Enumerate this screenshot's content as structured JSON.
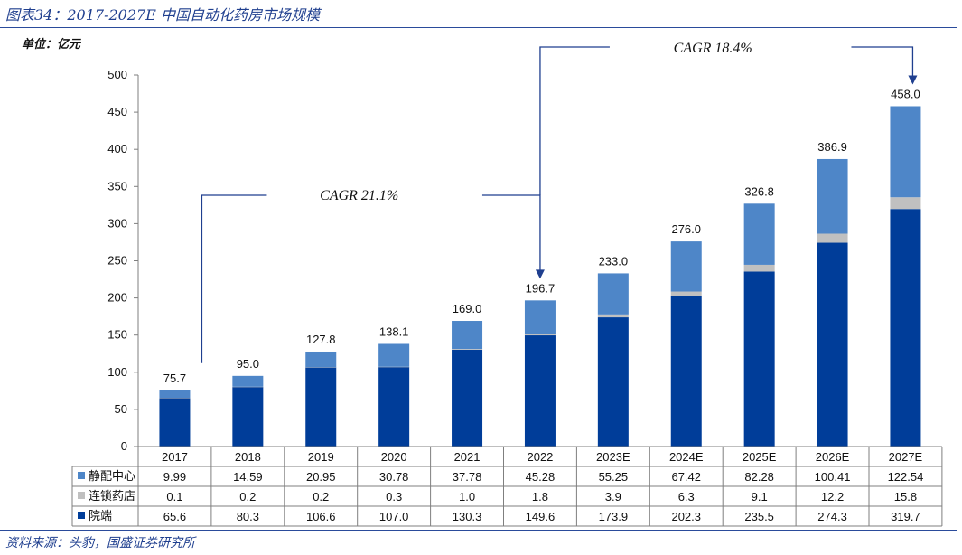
{
  "header": {
    "title": "图表34：2017-2027E 中国自动化药房市场规模",
    "unit": "单位：亿元",
    "source": "资料来源：头豹，国盛证券研究所"
  },
  "colors": {
    "accent": "#1f3f8f",
    "jingpei": "#4e86c8",
    "liansuo": "#c0c0c0",
    "yuanduan": "#003d99"
  },
  "chart_data": {
    "type": "bar",
    "stacked": true,
    "categories": [
      "2017",
      "2018",
      "2019",
      "2020",
      "2021",
      "2022",
      "2023E",
      "2024E",
      "2025E",
      "2026E",
      "2027E"
    ],
    "series": [
      {
        "name": "院端",
        "values": [
          65.6,
          80.3,
          106.6,
          107.0,
          130.3,
          149.6,
          173.9,
          202.3,
          235.5,
          274.3,
          319.7
        ]
      },
      {
        "name": "连锁药店",
        "values": [
          0.1,
          0.2,
          0.2,
          0.3,
          1.0,
          1.8,
          3.9,
          6.3,
          9.1,
          12.2,
          15.8
        ]
      },
      {
        "name": "静配中心",
        "values": [
          9.99,
          14.59,
          20.95,
          30.78,
          37.78,
          45.28,
          55.25,
          67.42,
          82.28,
          100.41,
          122.54
        ]
      }
    ],
    "series_labels": [
      [
        "65.6",
        "80.3",
        "106.6",
        "107.0",
        "130.3",
        "149.6",
        "173.9",
        "202.3",
        "235.5",
        "274.3",
        "319.7"
      ],
      [
        "0.1",
        "0.2",
        "0.2",
        "0.3",
        "1.0",
        "1.8",
        "3.9",
        "6.3",
        "9.1",
        "12.2",
        "15.8"
      ],
      [
        "9.99",
        "14.59",
        "20.95",
        "30.78",
        "37.78",
        "45.28",
        "55.25",
        "67.42",
        "82.28",
        "100.41",
        "122.54"
      ]
    ],
    "totals": [
      "75.7",
      "95.0",
      "127.8",
      "138.1",
      "169.0",
      "196.7",
      "233.0",
      "276.0",
      "326.8",
      "386.9",
      "458.0"
    ],
    "ylim": [
      0,
      500
    ],
    "yticks": [
      0,
      50,
      100,
      150,
      200,
      250,
      300,
      350,
      400,
      450,
      500
    ],
    "grid": false,
    "legend": "data-table-below",
    "annotations": [
      {
        "label": "CAGR 21.1%",
        "from": "2017",
        "to": "2022"
      },
      {
        "label": "CAGR 18.4%",
        "from": "2022",
        "to": "2027E"
      }
    ]
  }
}
